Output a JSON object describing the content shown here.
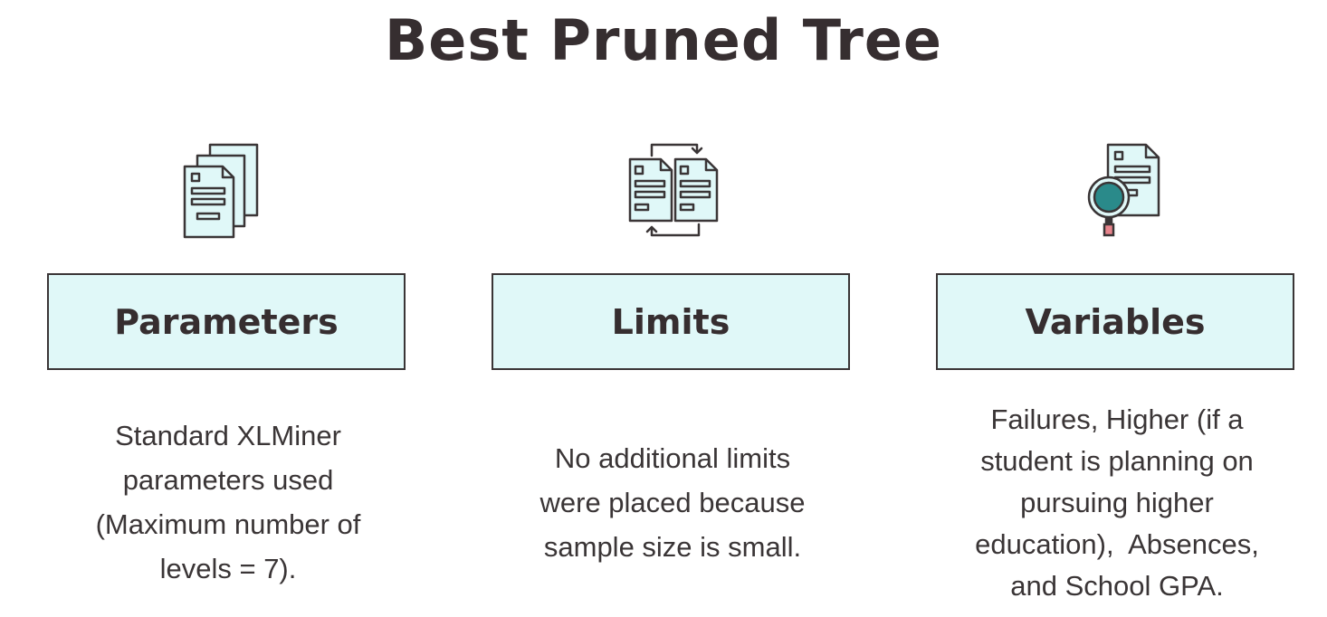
{
  "title": "Best Pruned Tree",
  "columns": [
    {
      "icon": "stacked-documents-icon",
      "heading": "Parameters",
      "description_lines": [
        "Standard XLMiner",
        "parameters used",
        "(Maximum number of",
        "levels = 7)."
      ]
    },
    {
      "icon": "document-exchange-icon",
      "heading": "Limits",
      "description_lines": [
        "No additional limits",
        "were placed because",
        "sample size is small."
      ]
    },
    {
      "icon": "document-search-icon",
      "heading": "Variables",
      "description_lines": [
        "Failures, Higher (if a",
        "student is planning on",
        "pursuing higher",
        "education),  Absences,",
        "and School GPA."
      ]
    }
  ],
  "colors": {
    "box_fill": "#e0f8f8",
    "outline": "#3a3536",
    "magnifier_lens": "#2a8a8a",
    "magnifier_handle": "#e8848c"
  }
}
